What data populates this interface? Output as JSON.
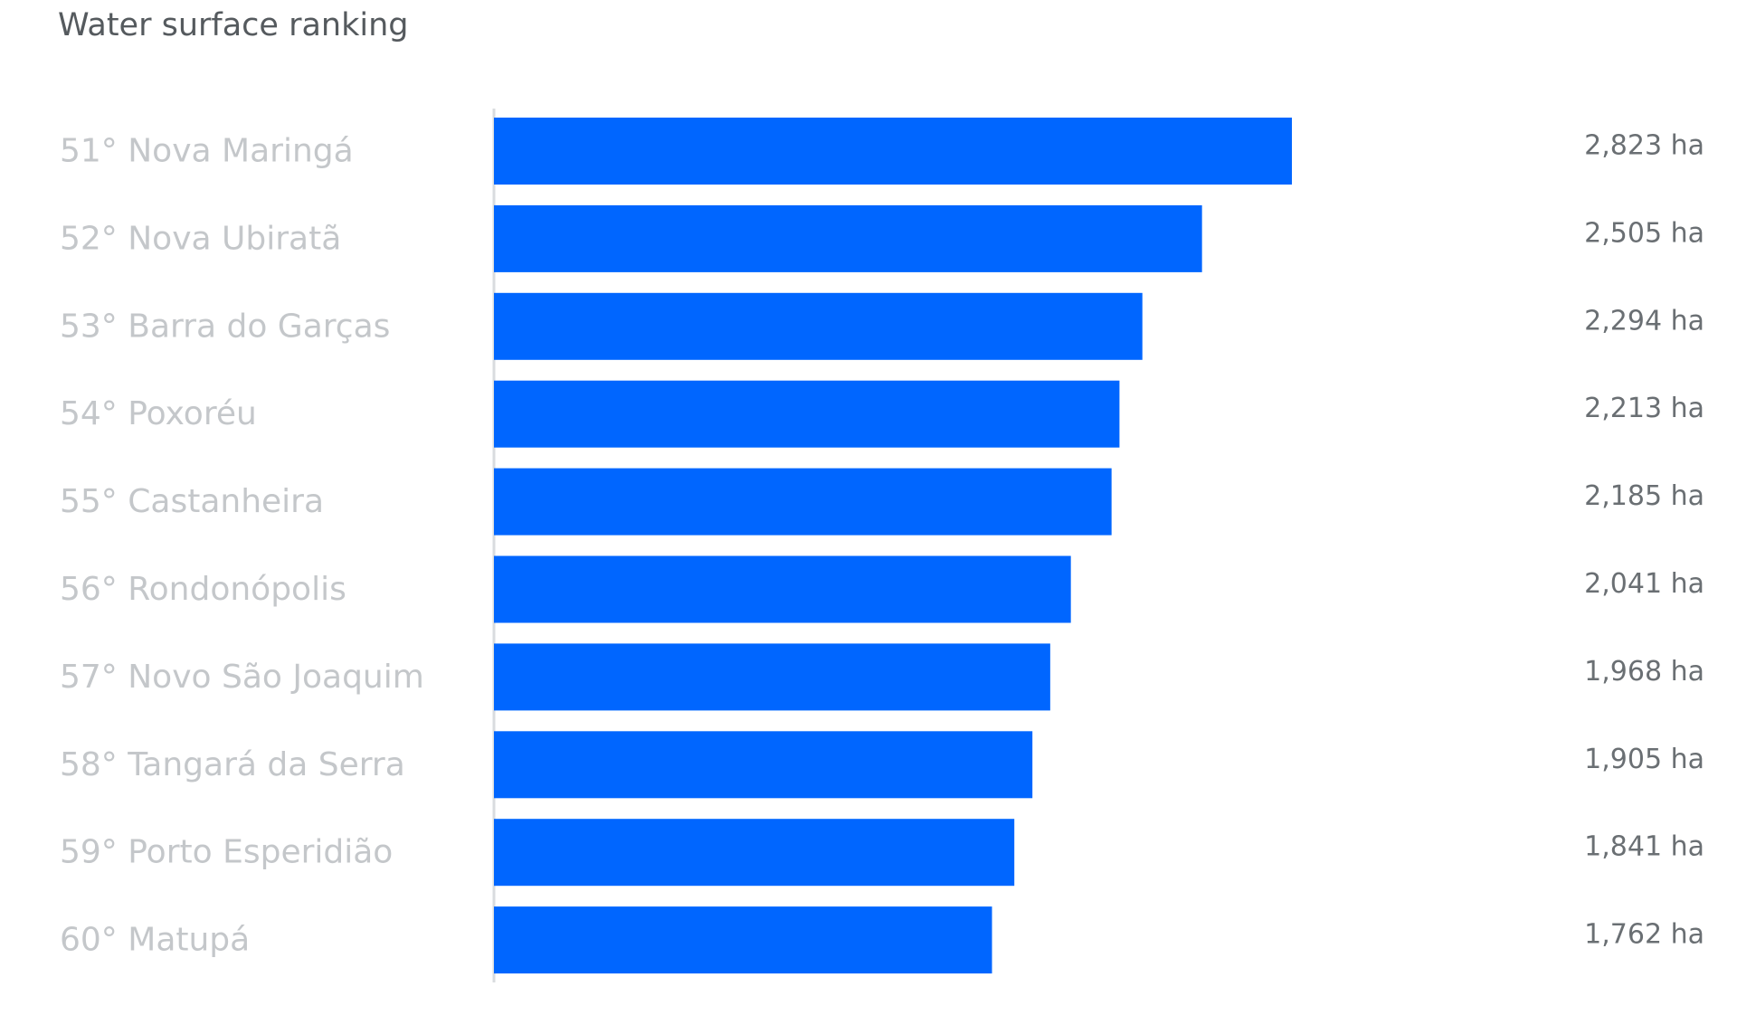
{
  "chart_data": {
    "type": "bar",
    "orientation": "horizontal",
    "title": "Water surface ranking",
    "categories": [
      "51° Nova Maringá",
      "52° Nova Ubiratã",
      "53° Barra do Garças",
      "54° Poxoréu",
      "55° Castanheira",
      "56° Rondonópolis",
      "57° Novo São Joaquim",
      "58° Tangará da Serra",
      "59° Porto Esperidião",
      "60° Matupá"
    ],
    "values": [
      2823,
      2505,
      2294,
      2213,
      2185,
      2041,
      1968,
      1905,
      1841,
      1762
    ],
    "value_labels": [
      "2,823 ha",
      "2,505 ha",
      "2,294 ha",
      "2,213 ha",
      "2,185 ha",
      "2,041 ha",
      "1,968 ha",
      "1,905 ha",
      "1,841 ha",
      "1,762 ha"
    ],
    "unit": "ha",
    "xlim": [
      0,
      2823
    ],
    "bar_color": "#0066ff",
    "axis_color": "#d9dcdf",
    "grid": false,
    "legend": "none"
  }
}
